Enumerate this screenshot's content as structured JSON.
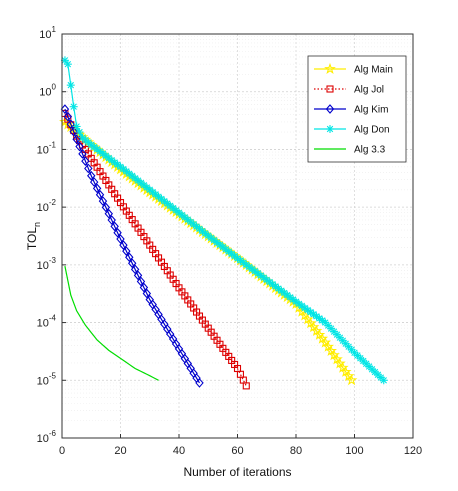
{
  "chart_data": {
    "type": "line",
    "xlabel": "Number of iterations",
    "ylabel": "TOL",
    "ylabel_sub": "n",
    "xlim": [
      0,
      120
    ],
    "ylim_exp": [
      -6,
      1
    ],
    "yscale": "log",
    "x_ticks": [
      0,
      20,
      40,
      60,
      80,
      100,
      120
    ],
    "y_tick_exps": [
      -6,
      -5,
      -4,
      -3,
      -2,
      -1,
      0,
      1
    ],
    "grid": true,
    "legend_position": "top-right",
    "series": [
      {
        "name": "Alg Main",
        "color": "#ffee00",
        "marker": "star",
        "line": "solid",
        "points": [
          [
            1,
            0.3
          ],
          [
            2,
            0.27
          ],
          [
            5,
            0.2
          ],
          [
            10,
            0.12
          ],
          [
            20,
            0.045
          ],
          [
            30,
            0.018
          ],
          [
            40,
            0.0075
          ],
          [
            50,
            0.0031
          ],
          [
            60,
            0.0013
          ],
          [
            70,
            0.00052
          ],
          [
            80,
            0.00021
          ],
          [
            90,
            4.5e-05
          ],
          [
            99,
            1e-05
          ]
        ]
      },
      {
        "name": "Alg Jol",
        "color": "#dd0000",
        "marker": "square",
        "line": "dotted",
        "points": [
          [
            1,
            0.42
          ],
          [
            5,
            0.17
          ],
          [
            10,
            0.07
          ],
          [
            20,
            0.012
          ],
          [
            30,
            0.0022
          ],
          [
            40,
            0.0004
          ],
          [
            50,
            8e-05
          ],
          [
            60,
            1.6e-05
          ],
          [
            63,
            8e-06
          ]
        ]
      },
      {
        "name": "Alg Kim",
        "color": "#0000cc",
        "marker": "diamond",
        "line": "solid",
        "points": [
          [
            1,
            0.5
          ],
          [
            5,
            0.15
          ],
          [
            10,
            0.035
          ],
          [
            20,
            0.0028
          ],
          [
            30,
            0.00025
          ],
          [
            40,
            3.5e-05
          ],
          [
            47,
            9e-06
          ]
        ]
      },
      {
        "name": "Alg Don",
        "color": "#00e5e5",
        "marker": "asterisk",
        "line": "solid",
        "points": [
          [
            1,
            3.5
          ],
          [
            2,
            3.0
          ],
          [
            3,
            1.3
          ],
          [
            4,
            0.55
          ],
          [
            5,
            0.25
          ],
          [
            7,
            0.16
          ],
          [
            10,
            0.12
          ],
          [
            20,
            0.05
          ],
          [
            30,
            0.02
          ],
          [
            40,
            0.008
          ],
          [
            50,
            0.0032
          ],
          [
            60,
            0.0013
          ],
          [
            70,
            0.00055
          ],
          [
            80,
            0.00023
          ],
          [
            90,
            0.0001
          ],
          [
            100,
            3e-05
          ],
          [
            110,
            1e-05
          ]
        ]
      },
      {
        "name": "Alg 3.3",
        "color": "#00dd00",
        "marker": "none",
        "line": "solid",
        "points": [
          [
            1,
            0.00095
          ],
          [
            3,
            0.0003
          ],
          [
            5,
            0.00016
          ],
          [
            8,
            9e-05
          ],
          [
            12,
            5e-05
          ],
          [
            16,
            3.3e-05
          ],
          [
            20,
            2.4e-05
          ],
          [
            25,
            1.6e-05
          ],
          [
            30,
            1.2e-05
          ],
          [
            33,
            1e-05
          ]
        ]
      }
    ]
  }
}
